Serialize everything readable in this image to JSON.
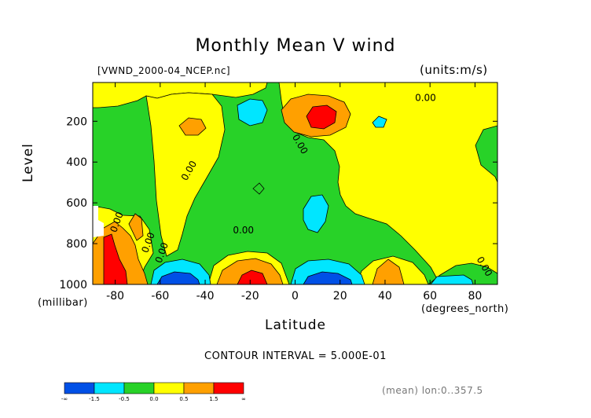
{
  "chart_data": {
    "type": "heatmap",
    "title": "Monthly Mean V wind",
    "file_label": "[VWND_2000-04_NCEP.nc]",
    "units_label": "(units:m/s)",
    "ylabel": "Level",
    "yunit": "(millibar)",
    "xlabel": "Latitude",
    "xunit": "(degrees_north)",
    "xlim": [
      -90,
      90
    ],
    "ylim": [
      1000,
      10
    ],
    "x_ticks": [
      -80,
      -60,
      -40,
      -20,
      0,
      20,
      40,
      60,
      80
    ],
    "y_ticks": [
      200,
      400,
      600,
      800,
      1000
    ],
    "contour_interval": "CONTOUR INTERVAL = 5.000E-01",
    "mean_note": "(mean) lon:0..357.5",
    "contour_labels": [
      "0.00",
      "0.00",
      "0.00",
      "0.00",
      "0.00",
      "0.00",
      "0.00",
      "0.00"
    ],
    "colorbar": {
      "labels": [
        "-∞",
        "-1.5",
        "-0.5",
        "0.0",
        "0.5",
        "1.5",
        "∞"
      ],
      "colors": [
        "#0050e6",
        "#00e6ff",
        "#28d228",
        "#ffff00",
        "#ffa000",
        "#ff0000"
      ]
    },
    "regions": [
      {
        "name": "green background",
        "level": "-0.5 to 0.0",
        "color": "#28d228"
      },
      {
        "name": "jet positive max near 10N 200mb",
        "level": "> 1.5",
        "color": "#ff0000"
      },
      {
        "name": "surface positive near 20S",
        "level": "> 1.5",
        "color": "#ff0000"
      },
      {
        "name": "surface negative near 55S",
        "level": "< -1.5",
        "color": "#0050e6"
      },
      {
        "name": "surface negative near 12N",
        "level": "< -1.5",
        "color": "#0050e6"
      },
      {
        "name": "antarctic surface positive near 85S",
        "level": "> 1.5",
        "color": "#ff0000"
      }
    ]
  }
}
